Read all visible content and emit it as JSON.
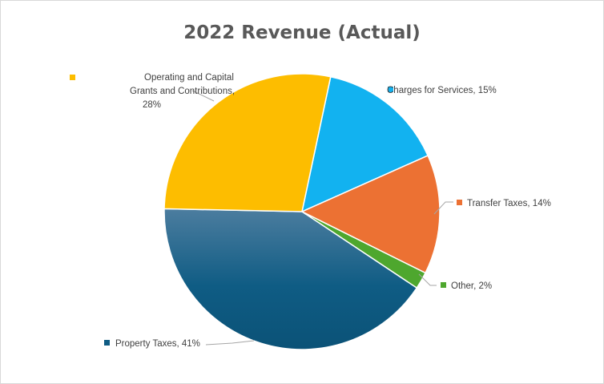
{
  "chart_data": {
    "type": "pie",
    "title": "2022 Revenue (Actual)",
    "slices": [
      {
        "label": "Charges for Services",
        "value": 15,
        "display": "Charges for Services, 15%",
        "color": "#12b2f0"
      },
      {
        "label": "Transfer Taxes",
        "value": 14,
        "display": "Transfer Taxes, 14%",
        "color": "#ec7133"
      },
      {
        "label": "Other",
        "value": 2,
        "display": "Other, 2%",
        "color": "#4ea72e"
      },
      {
        "label": "Property Taxes",
        "value": 41,
        "display": "Property Taxes, 41%",
        "color": "#0f5c84"
      },
      {
        "label": "Operating and Capital Grants and Contributions",
        "value": 28,
        "display_lines": [
          "Operating and Capital",
          "Grants and Contributions,",
          "28%"
        ],
        "color": "#fdbd00"
      }
    ],
    "legend": "none",
    "data_labels": "outside with leader lines"
  }
}
